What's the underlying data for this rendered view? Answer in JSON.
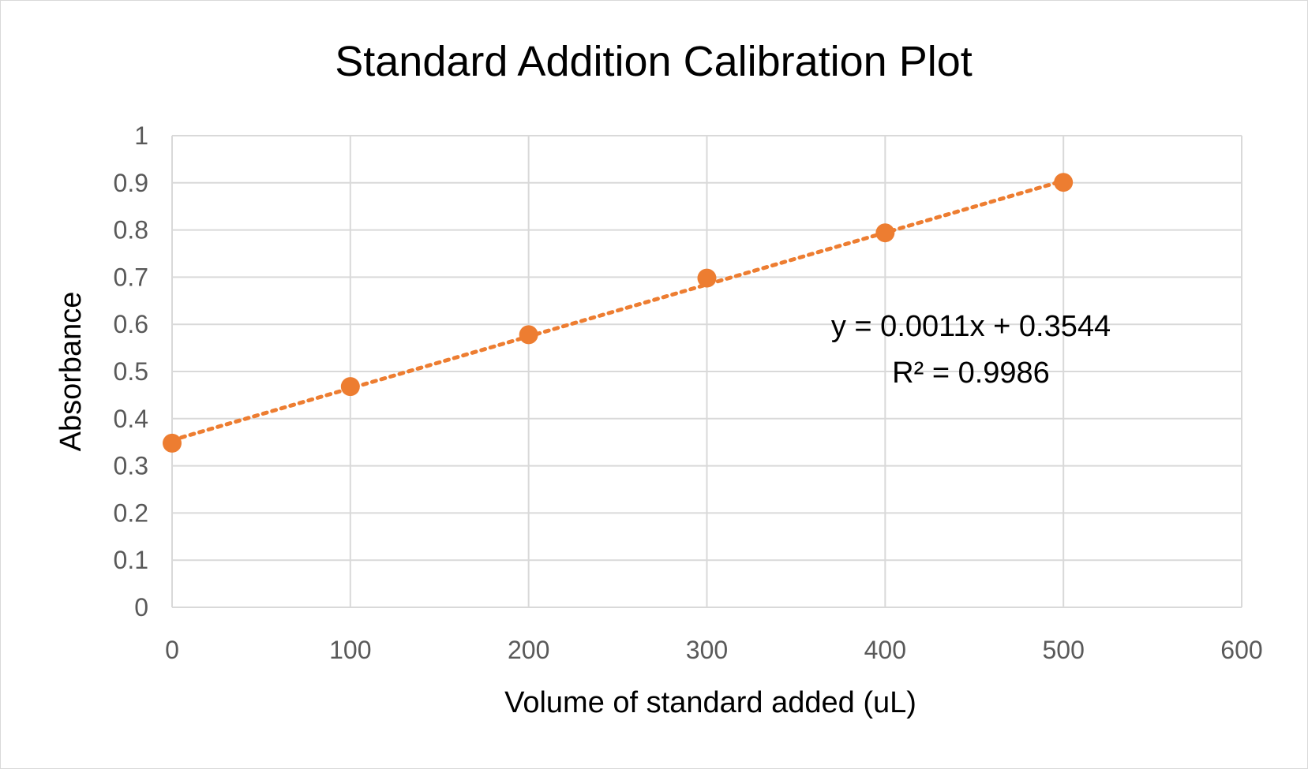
{
  "chart_data": {
    "type": "scatter",
    "title": "Standard Addition Calibration Plot",
    "xlabel": "Volume of standard added (uL)",
    "ylabel": "Absorbance",
    "xlim": [
      0,
      600
    ],
    "ylim": [
      0,
      1
    ],
    "x_ticks": [
      0,
      100,
      200,
      300,
      400,
      500,
      600
    ],
    "y_ticks": [
      0,
      0.1,
      0.2,
      0.3,
      0.4,
      0.5,
      0.6,
      0.7,
      0.8,
      0.9,
      1
    ],
    "grid": true,
    "legend": "none",
    "series": [
      {
        "color": "#ed7d31",
        "x": [
          0,
          100,
          200,
          300,
          400,
          500
        ],
        "y": [
          0.348,
          0.468,
          0.578,
          0.698,
          0.794,
          0.901
        ]
      }
    ],
    "trendline": {
      "style": "dotted",
      "color": "#ed7d31",
      "slope": 0.0011,
      "intercept": 0.3544,
      "x_range": [
        0,
        500
      ]
    },
    "annotations": {
      "equation": "y = 0.0011x + 0.3544",
      "r_squared": "R² = 0.9986"
    }
  }
}
